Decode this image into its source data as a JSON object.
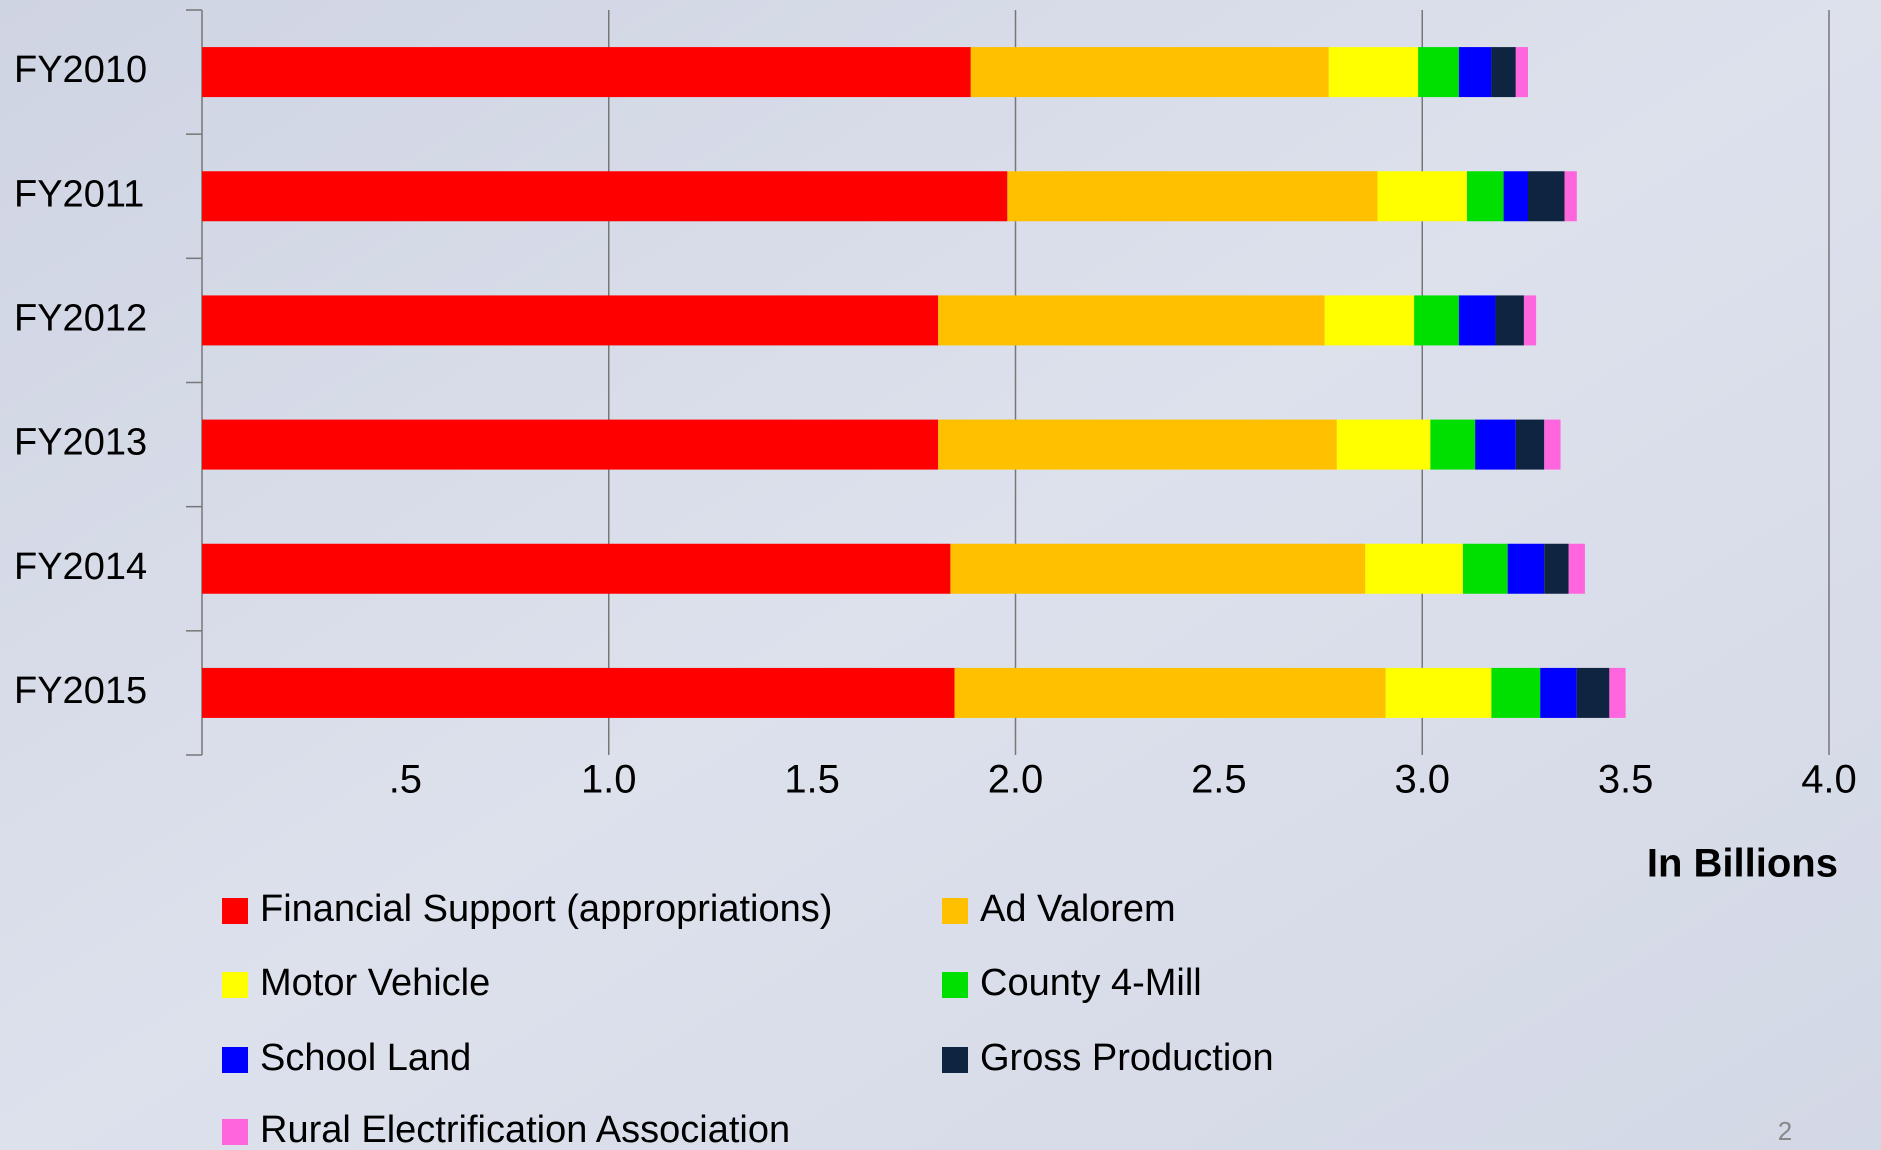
{
  "chart_data": {
    "type": "hbar_stacked",
    "categories": [
      "FY2010",
      "FY2011",
      "FY2012",
      "FY2013",
      "FY2014",
      "FY2015"
    ],
    "series": [
      {
        "name": "Financial Support (appropriations)",
        "color": "#ff0000",
        "values": [
          1.89,
          1.98,
          1.81,
          1.81,
          1.84,
          1.85
        ]
      },
      {
        "name": "Ad Valorem",
        "color": "#ffc000",
        "values": [
          0.88,
          0.91,
          0.95,
          0.98,
          1.02,
          1.06
        ]
      },
      {
        "name": "Motor Vehicle",
        "color": "#ffff00",
        "values": [
          0.22,
          0.22,
          0.22,
          0.23,
          0.24,
          0.26
        ]
      },
      {
        "name": "County 4-Mill",
        "color": "#00e000",
        "values": [
          0.1,
          0.09,
          0.11,
          0.11,
          0.11,
          0.12
        ]
      },
      {
        "name": "School Land",
        "color": "#0000ff",
        "values": [
          0.08,
          0.06,
          0.09,
          0.1,
          0.09,
          0.09
        ]
      },
      {
        "name": "Gross Production",
        "color": "#0f2440",
        "values": [
          0.06,
          0.09,
          0.07,
          0.07,
          0.06,
          0.08
        ]
      },
      {
        "name": "Rural Electrification Association",
        "color": "#ff66dd",
        "values": [
          0.03,
          0.03,
          0.03,
          0.04,
          0.04,
          0.04
        ]
      }
    ],
    "xlim": [
      0,
      4
    ],
    "xticks": [
      {
        "value": 0.5,
        "label": ".5"
      },
      {
        "value": 1,
        "label": "1.0"
      },
      {
        "value": 1.5,
        "label": "1.5"
      },
      {
        "value": 2,
        "label": "2.0"
      },
      {
        "value": 2.5,
        "label": "2.5"
      },
      {
        "value": 3,
        "label": "3.0"
      },
      {
        "value": 3.5,
        "label": "3.5"
      },
      {
        "value": 4,
        "label": "4.0"
      }
    ],
    "xgrid": [
      1,
      2,
      3,
      4
    ],
    "x_label": "In Billions"
  },
  "slide_number": "2"
}
